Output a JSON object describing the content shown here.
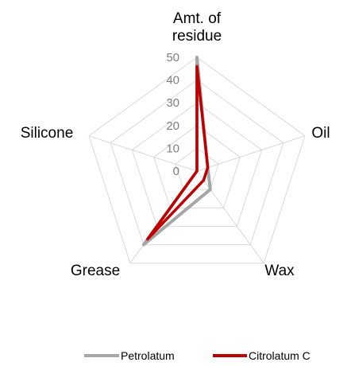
{
  "chart_data": {
    "type": "radar",
    "categories": [
      "Amt. of residue",
      "Oil",
      "Wax",
      "Grease",
      "Silicone"
    ],
    "category_lines": [
      [
        "Amt. of",
        "residue"
      ],
      [
        "Oil"
      ],
      [
        "Wax"
      ],
      [
        "Grease"
      ],
      [
        "Silicone"
      ]
    ],
    "rlim": [
      0,
      50
    ],
    "ticks": [
      "0",
      "10",
      "20",
      "30",
      "40",
      "50"
    ],
    "grid": true,
    "legend_position": "bottom",
    "series": [
      {
        "name": "Petrolatum",
        "values": [
          50,
          5,
          10,
          40,
          0
        ],
        "color": "#a6a6a6"
      },
      {
        "name": "Citrolatum C",
        "values": [
          46,
          5,
          5,
          37,
          0
        ],
        "color": "#c00000"
      }
    ]
  }
}
